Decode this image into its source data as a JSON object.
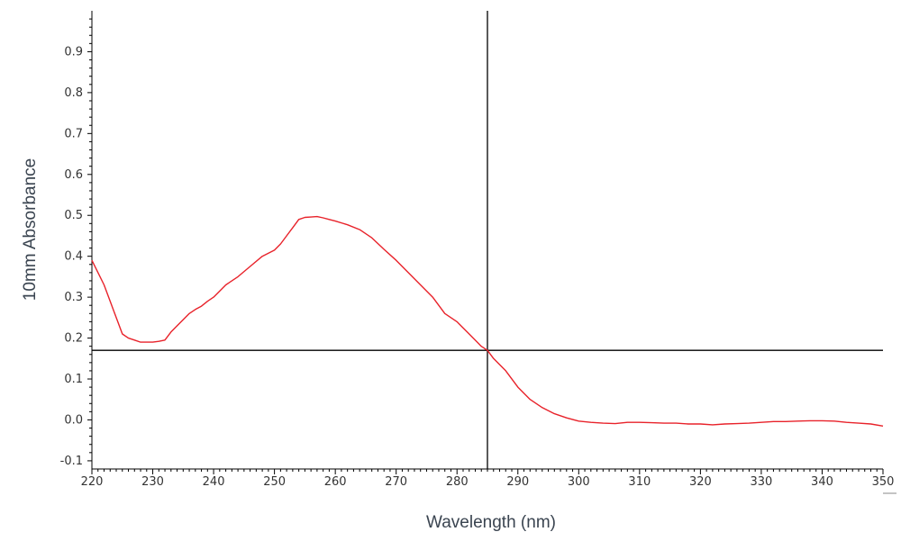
{
  "chart_data": {
    "type": "line",
    "title": "",
    "xlabel": "Wavelength (nm)",
    "ylabel": "10mm Absorbance",
    "xlim": [
      220,
      350
    ],
    "ylim": [
      -0.12,
      1.0
    ],
    "grid": false,
    "x_ticks": [
      220,
      230,
      240,
      250,
      260,
      270,
      280,
      290,
      300,
      310,
      320,
      330,
      340,
      350
    ],
    "x_tick_labels": [
      "220",
      "230",
      "240",
      "250",
      "260",
      "270",
      "280",
      "290",
      "300",
      "310",
      "320",
      "330",
      "340",
      "350"
    ],
    "y_ticks": [
      -0.1,
      0.0,
      0.1,
      0.2,
      0.3,
      0.4,
      0.5,
      0.6,
      0.7,
      0.8,
      0.9
    ],
    "y_tick_labels": [
      "-0.1",
      "0.0",
      "0.1",
      "0.2",
      "0.3",
      "0.4",
      "0.5",
      "0.6",
      "0.7",
      "0.8",
      "0.9"
    ],
    "crosshair": {
      "x": 285,
      "y": 0.17
    },
    "colors": {
      "series": "#e8222a",
      "axis": "#000000",
      "crosshair": "#000000"
    },
    "series": [
      {
        "x": [
          220,
          221,
          222,
          223,
          224,
          225,
          226,
          227,
          228,
          229,
          230,
          231,
          232,
          233,
          234,
          235,
          236,
          237,
          238,
          239,
          240,
          242,
          244,
          246,
          248,
          250,
          251,
          252,
          253,
          254,
          255,
          256,
          257,
          258,
          259,
          260,
          262,
          264,
          266,
          268,
          270,
          272,
          274,
          276,
          278,
          280,
          282,
          284,
          285,
          286,
          288,
          290,
          292,
          294,
          296,
          298,
          300,
          302,
          304,
          306,
          308,
          310,
          312,
          314,
          316,
          318,
          320,
          322,
          324,
          326,
          328,
          330,
          332,
          334,
          336,
          338,
          340,
          342,
          344,
          346,
          348,
          350
        ],
        "y": [
          0.39,
          0.36,
          0.33,
          0.29,
          0.25,
          0.21,
          0.2,
          0.195,
          0.19,
          0.19,
          0.19,
          0.192,
          0.195,
          0.215,
          0.23,
          0.245,
          0.26,
          0.27,
          0.278,
          0.29,
          0.3,
          0.33,
          0.35,
          0.375,
          0.4,
          0.415,
          0.43,
          0.45,
          0.47,
          0.49,
          0.495,
          0.496,
          0.497,
          0.494,
          0.49,
          0.486,
          0.477,
          0.465,
          0.445,
          0.417,
          0.39,
          0.36,
          0.33,
          0.3,
          0.26,
          0.24,
          0.21,
          0.18,
          0.17,
          0.15,
          0.12,
          0.08,
          0.05,
          0.03,
          0.015,
          0.005,
          -0.003,
          -0.006,
          -0.008,
          -0.009,
          -0.006,
          -0.006,
          -0.007,
          -0.008,
          -0.008,
          -0.01,
          -0.01,
          -0.012,
          -0.01,
          -0.009,
          -0.008,
          -0.006,
          -0.004,
          -0.004,
          -0.003,
          -0.002,
          -0.002,
          -0.003,
          -0.006,
          -0.008,
          -0.01,
          -0.015
        ]
      }
    ]
  }
}
